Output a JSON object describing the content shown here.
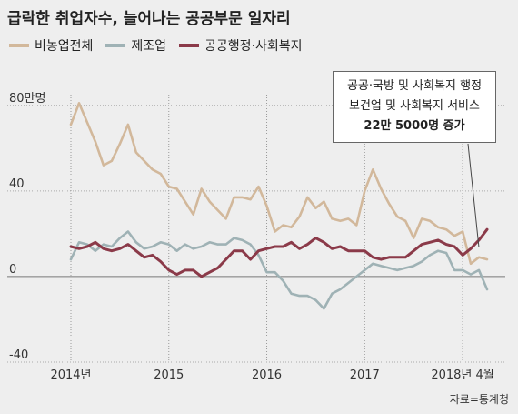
{
  "title": "급락한 취업자수, 늘어나는 공공부문 일자리",
  "source": "자료=통계청",
  "annotation": {
    "line1": "공공·국방 및 사회복지 행정",
    "line2": "보건업 및 사회복지 서비스",
    "line3": "22만 5000명 증가"
  },
  "colors": {
    "background": "#eeeeee",
    "total": "#d2b89b",
    "manufacturing": "#9fb2b5",
    "public": "#8b3a49"
  },
  "chart_data": {
    "type": "line",
    "title": "급락한 취업자수, 늘어나는 공공부문 일자리",
    "unit_label": "만명",
    "ylim": [
      -40,
      85
    ],
    "yticks": [
      {
        "value": 80,
        "label": "80만명"
      },
      {
        "value": 40,
        "label": "40"
      },
      {
        "value": 0,
        "label": "0"
      },
      {
        "value": -40,
        "label": "-40"
      }
    ],
    "xticks": [
      {
        "index": 0,
        "label": "2014년"
      },
      {
        "index": 12,
        "label": "2015"
      },
      {
        "index": 24,
        "label": "2016"
      },
      {
        "index": 36,
        "label": "2017"
      },
      {
        "index": 48,
        "label": "2018년 4월"
      }
    ],
    "x": [
      "2014-01",
      "2014-02",
      "2014-03",
      "2014-04",
      "2014-05",
      "2014-06",
      "2014-07",
      "2014-08",
      "2014-09",
      "2014-10",
      "2014-11",
      "2014-12",
      "2015-01",
      "2015-02",
      "2015-03",
      "2015-04",
      "2015-05",
      "2015-06",
      "2015-07",
      "2015-08",
      "2015-09",
      "2015-10",
      "2015-11",
      "2015-12",
      "2016-01",
      "2016-02",
      "2016-03",
      "2016-04",
      "2016-05",
      "2016-06",
      "2016-07",
      "2016-08",
      "2016-09",
      "2016-10",
      "2016-11",
      "2016-12",
      "2017-01",
      "2017-02",
      "2017-03",
      "2017-04",
      "2017-05",
      "2017-06",
      "2017-07",
      "2017-08",
      "2017-09",
      "2017-10",
      "2017-11",
      "2017-12",
      "2018-01",
      "2018-02",
      "2018-03",
      "2018-04"
    ],
    "legend_position": "top-left",
    "grid": true,
    "series": [
      {
        "name": "비농업전체",
        "color": "#d2b89b",
        "values": [
          71,
          81,
          72,
          63,
          52,
          54,
          62,
          71,
          58,
          54,
          50,
          48,
          42,
          41,
          35,
          29,
          41,
          35,
          31,
          27,
          37,
          37,
          36,
          42,
          33,
          21,
          24,
          23,
          28,
          37,
          32,
          35,
          27,
          26,
          27,
          24,
          40,
          50,
          41,
          34,
          28,
          26,
          18,
          27,
          26,
          23,
          22,
          19,
          21,
          6,
          9,
          8
        ]
      },
      {
        "name": "제조업",
        "color": "#9fb2b5",
        "values": [
          8,
          16,
          15,
          12,
          15,
          14,
          18,
          21,
          16,
          13,
          14,
          16,
          15,
          12,
          15,
          13,
          14,
          16,
          15,
          15,
          18,
          17,
          15,
          10,
          2,
          2,
          -2,
          -8,
          -9,
          -9,
          -11,
          -15,
          -8,
          -6,
          -3,
          0,
          3,
          6,
          5,
          4,
          3,
          4,
          5,
          7,
          10,
          12,
          11,
          3,
          3,
          1,
          3,
          -6
        ]
      },
      {
        "name": "공공행정·사회복지",
        "color": "#8b3a49",
        "values": [
          14,
          13,
          14,
          16,
          13,
          12,
          13,
          15,
          12,
          9,
          10,
          7,
          3,
          1,
          3,
          3,
          0,
          2,
          4,
          8,
          12,
          12,
          8,
          12,
          13,
          14,
          14,
          16,
          13,
          15,
          18,
          16,
          13,
          14,
          12,
          12,
          12,
          9,
          8,
          9,
          9,
          9,
          12,
          15,
          16,
          17,
          15,
          14,
          10,
          13,
          17,
          22
        ]
      }
    ]
  }
}
